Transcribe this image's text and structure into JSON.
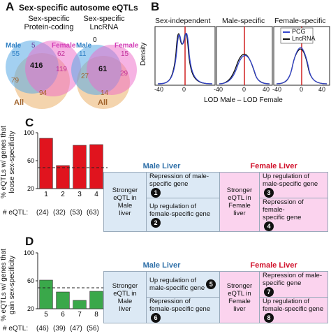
{
  "panel_a": {
    "letter": "A",
    "title": "Sex-specific autosome eQTLs",
    "venn_left": {
      "title": "Sex-specific\nProtein-coding",
      "male_label": "Male",
      "female_label": "Female",
      "all_label": "All",
      "male_only": "55",
      "male_female": "5",
      "female_only": "62",
      "center": "416",
      "female_all": "119",
      "male_all": "79",
      "all_only": "94"
    },
    "venn_right": {
      "title": "Sex-specific\nLncRNA",
      "male_label": "Male",
      "female_label": "Female",
      "all_label": "All",
      "male_only": "11",
      "male_female": "0",
      "female_only": "15",
      "center": "61",
      "female_all": "29",
      "male_all": "27",
      "all_only": "14"
    },
    "colors": {
      "male": "#3a8fd0",
      "female": "#e040c0",
      "all": "#b07030"
    }
  },
  "panel_b": {
    "letter": "B",
    "subtitles": [
      "Sex-independent",
      "Male-specific",
      "Female-specific"
    ],
    "ylabel": "Density",
    "xlabel": "LOD Male – LOD Female",
    "ticks": [
      "-40",
      "0",
      "40"
    ],
    "legend": [
      "PCG",
      "LncRNA"
    ]
  },
  "panel_c": {
    "letter": "C",
    "ylabel": "% eQTLs w/ genes that\nloose sex-specificity",
    "yticks": [
      "20",
      "60",
      "100"
    ],
    "eqtl_label": "# eQTL:",
    "dashed": 50,
    "table": {
      "male_header": "Male Liver",
      "female_header": "Female Liver",
      "male_left": "Stronger\neQTL in\nMale\nliver",
      "male_rows": [
        {
          "text": "Repression of male-\nspecific gene",
          "num": "1"
        },
        {
          "text": "Up regulation of\nfemale-specific gene",
          "num": "2"
        }
      ],
      "female_left": "Stronger\neQTL in\nFemale\nliver",
      "female_rows": [
        {
          "text": "Up regulation of\nmale-specific gene",
          "num": "3"
        },
        {
          "text": "Repression of female-\nspecific gene",
          "num": "4"
        }
      ]
    }
  },
  "panel_d": {
    "letter": "D",
    "ylabel": "% eQTLs w/ genes that\ngain sex-specificity",
    "yticks": [
      "20",
      "60",
      "100"
    ],
    "eqtl_label": "# eQTL:",
    "dashed": 50,
    "table": {
      "male_header": "Male Liver",
      "female_header": "Female Liver",
      "male_left": "Stronger\neQTL in\nMale\nliver",
      "male_rows": [
        {
          "text": "Up regulation of\nmale-specific gene",
          "num": "5"
        },
        {
          "text": "Repression of\nfemale-specific gene",
          "num": "6"
        }
      ],
      "female_left": "Stronger\neQTL in\nFemale\nliver",
      "female_rows": [
        {
          "text": "Repression of male-\nspecific gene",
          "num": "7"
        },
        {
          "text": "Up regulation of\nfemale-specific gene",
          "num": "8"
        }
      ]
    }
  },
  "chart_data": [
    {
      "type": "bar",
      "panel": "C",
      "categories": [
        "1",
        "2",
        "3",
        "4"
      ],
      "counts": [
        "(24)",
        "(32)",
        "(53)",
        "(63)"
      ],
      "values": [
        92,
        53,
        82,
        83
      ],
      "ylim": [
        20,
        100
      ],
      "reference_line": 50,
      "color": "#e0141e",
      "ylabel": "% eQTLs w/ genes that loose sex-specificity",
      "xlabel": "# eQTL:"
    },
    {
      "type": "bar",
      "panel": "D",
      "categories": [
        "5",
        "6",
        "7",
        "8"
      ],
      "counts": [
        "(46)",
        "(39)",
        "(47)",
        "(56)"
      ],
      "values": [
        61,
        44,
        32,
        45
      ],
      "ylim": [
        20,
        100
      ],
      "reference_line": 50,
      "color": "#3aa84a",
      "ylabel": "% eQTLs w/ genes that gain sex-specificity",
      "xlabel": "# eQTL:"
    },
    {
      "type": "line",
      "panel": "B",
      "series": [
        {
          "name": "PCG",
          "color": "#3344cc"
        },
        {
          "name": "LncRNA",
          "color": "#111111"
        }
      ],
      "xlim": [
        -40,
        40
      ],
      "subplots": [
        "Sex-independent",
        "Male-specific",
        "Female-specific"
      ],
      "vertical_line": 0
    }
  ]
}
